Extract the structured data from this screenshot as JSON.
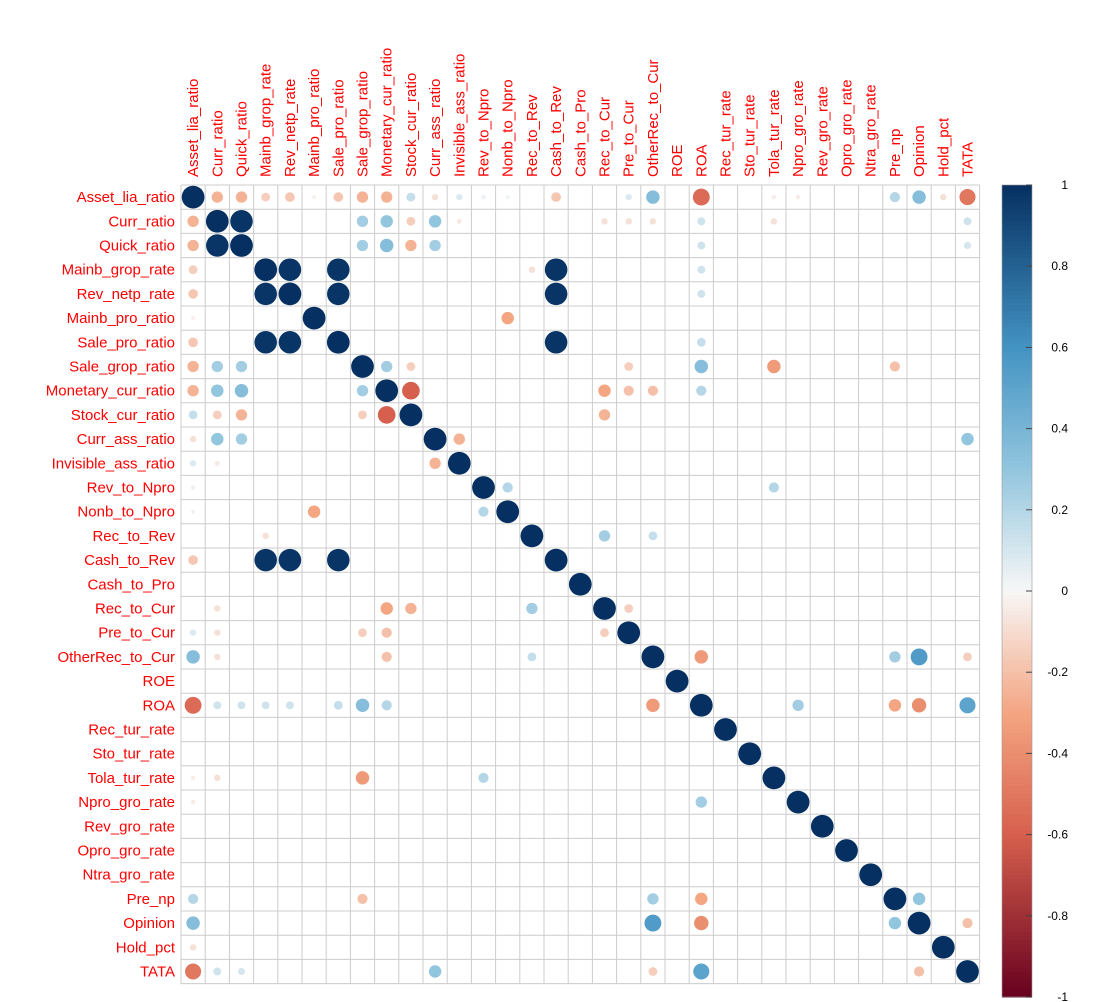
{
  "chart_data": {
    "type": "heatmap",
    "title": "",
    "variables": [
      "Asset_lia_ratio",
      "Curr_ratio",
      "Quick_ratio",
      "Mainb_grop_rate",
      "Rev_netp_rate",
      "Mainb_pro_ratio",
      "Sale_pro_ratio",
      "Sale_grop_ratio",
      "Monetary_cur_ratio",
      "Stock_cur_ratio",
      "Curr_ass_ratio",
      "Invisible_ass_ratio",
      "Rev_to_Npro",
      "Nonb_to_Npro",
      "Rec_to_Rev",
      "Cash_to_Rev",
      "Cash_to_Pro",
      "Rec_to_Cur",
      "Pre_to_Cur",
      "OtherRec_to_Cur",
      "ROE",
      "ROA",
      "Rec_tur_rate",
      "Sto_tur_rate",
      "Tola_tur_rate",
      "Npro_gro_rate",
      "Rev_gro_rate",
      "Opro_gro_rate",
      "Ntra_gro_rate",
      "Pre_np",
      "Opinion",
      "Hold_pct",
      "TATA"
    ],
    "correlations": [
      {
        "a": "Asset_lia_ratio",
        "b": "Curr_ratio",
        "r": -0.25
      },
      {
        "a": "Asset_lia_ratio",
        "b": "Quick_ratio",
        "r": -0.25
      },
      {
        "a": "Asset_lia_ratio",
        "b": "Mainb_grop_rate",
        "r": -0.15
      },
      {
        "a": "Asset_lia_ratio",
        "b": "Rev_netp_rate",
        "r": -0.18
      },
      {
        "a": "Asset_lia_ratio",
        "b": "Mainb_pro_ratio",
        "r": -0.03
      },
      {
        "a": "Asset_lia_ratio",
        "b": "Sale_pro_ratio",
        "r": -0.18
      },
      {
        "a": "Asset_lia_ratio",
        "b": "Sale_grop_ratio",
        "r": -0.25
      },
      {
        "a": "Asset_lia_ratio",
        "b": "Monetary_cur_ratio",
        "r": -0.25
      },
      {
        "a": "Asset_lia_ratio",
        "b": "Stock_cur_ratio",
        "r": 0.15
      },
      {
        "a": "Asset_lia_ratio",
        "b": "Curr_ass_ratio",
        "r": -0.08
      },
      {
        "a": "Asset_lia_ratio",
        "b": "Invisible_ass_ratio",
        "r": 0.08
      },
      {
        "a": "Asset_lia_ratio",
        "b": "Rev_to_Npro",
        "r": 0.04
      },
      {
        "a": "Asset_lia_ratio",
        "b": "Nonb_to_Npro",
        "r": 0.03
      },
      {
        "a": "Asset_lia_ratio",
        "b": "Cash_to_Rev",
        "r": -0.18
      },
      {
        "a": "Asset_lia_ratio",
        "b": "Pre_to_Cur",
        "r": 0.08
      },
      {
        "a": "Asset_lia_ratio",
        "b": "OtherRec_to_Cur",
        "r": 0.35
      },
      {
        "a": "Asset_lia_ratio",
        "b": "ROA",
        "r": -0.55
      },
      {
        "a": "Asset_lia_ratio",
        "b": "Tola_tur_rate",
        "r": -0.04
      },
      {
        "a": "Asset_lia_ratio",
        "b": "Npro_gro_rate",
        "r": -0.04
      },
      {
        "a": "Asset_lia_ratio",
        "b": "Pre_np",
        "r": 0.2
      },
      {
        "a": "Asset_lia_ratio",
        "b": "Opinion",
        "r": 0.35
      },
      {
        "a": "Asset_lia_ratio",
        "b": "Hold_pct",
        "r": -0.08
      },
      {
        "a": "Asset_lia_ratio",
        "b": "TATA",
        "r": -0.5
      },
      {
        "a": "Curr_ratio",
        "b": "Quick_ratio",
        "r": 0.98
      },
      {
        "a": "Curr_ratio",
        "b": "Sale_grop_ratio",
        "r": 0.25
      },
      {
        "a": "Curr_ratio",
        "b": "Monetary_cur_ratio",
        "r": 0.3
      },
      {
        "a": "Curr_ratio",
        "b": "Stock_cur_ratio",
        "r": -0.15
      },
      {
        "a": "Curr_ratio",
        "b": "Curr_ass_ratio",
        "r": 0.3
      },
      {
        "a": "Curr_ratio",
        "b": "Invisible_ass_ratio",
        "r": -0.05
      },
      {
        "a": "Curr_ratio",
        "b": "Rec_to_Cur",
        "r": -0.08
      },
      {
        "a": "Curr_ratio",
        "b": "Pre_to_Cur",
        "r": -0.08
      },
      {
        "a": "Curr_ratio",
        "b": "OtherRec_to_Cur",
        "r": -0.08
      },
      {
        "a": "Curr_ratio",
        "b": "ROA",
        "r": 0.12
      },
      {
        "a": "Curr_ratio",
        "b": "Tola_tur_rate",
        "r": -0.08
      },
      {
        "a": "Curr_ratio",
        "b": "TATA",
        "r": 0.12
      },
      {
        "a": "Quick_ratio",
        "b": "Sale_grop_ratio",
        "r": 0.25
      },
      {
        "a": "Quick_ratio",
        "b": "Monetary_cur_ratio",
        "r": 0.35
      },
      {
        "a": "Quick_ratio",
        "b": "Stock_cur_ratio",
        "r": -0.25
      },
      {
        "a": "Quick_ratio",
        "b": "Curr_ass_ratio",
        "r": 0.25
      },
      {
        "a": "Quick_ratio",
        "b": "ROA",
        "r": 0.12
      },
      {
        "a": "Quick_ratio",
        "b": "TATA",
        "r": 0.1
      },
      {
        "a": "Mainb_grop_rate",
        "b": "Rev_netp_rate",
        "r": 0.98
      },
      {
        "a": "Mainb_grop_rate",
        "b": "Sale_pro_ratio",
        "r": 0.98
      },
      {
        "a": "Mainb_grop_rate",
        "b": "Cash_to_Rev",
        "r": 0.98
      },
      {
        "a": "Mainb_grop_rate",
        "b": "Rec_to_Rev",
        "r": -0.08
      },
      {
        "a": "Mainb_grop_rate",
        "b": "ROA",
        "r": 0.12
      },
      {
        "a": "Rev_netp_rate",
        "b": "Sale_pro_ratio",
        "r": 0.98
      },
      {
        "a": "Rev_netp_rate",
        "b": "Cash_to_Rev",
        "r": 0.98
      },
      {
        "a": "Rev_netp_rate",
        "b": "ROA",
        "r": 0.12
      },
      {
        "a": "Mainb_pro_ratio",
        "b": "Nonb_to_Npro",
        "r": -0.3
      },
      {
        "a": "Sale_pro_ratio",
        "b": "Cash_to_Rev",
        "r": 0.98
      },
      {
        "a": "Sale_pro_ratio",
        "b": "ROA",
        "r": 0.15
      },
      {
        "a": "Sale_grop_ratio",
        "b": "Monetary_cur_ratio",
        "r": 0.25
      },
      {
        "a": "Sale_grop_ratio",
        "b": "Stock_cur_ratio",
        "r": -0.15
      },
      {
        "a": "Sale_grop_ratio",
        "b": "Pre_to_Cur",
        "r": -0.15
      },
      {
        "a": "Sale_grop_ratio",
        "b": "ROA",
        "r": 0.35
      },
      {
        "a": "Sale_grop_ratio",
        "b": "Tola_tur_rate",
        "r": -0.35
      },
      {
        "a": "Sale_grop_ratio",
        "b": "Pre_np",
        "r": -0.2
      },
      {
        "a": "Monetary_cur_ratio",
        "b": "Stock_cur_ratio",
        "r": -0.6
      },
      {
        "a": "Monetary_cur_ratio",
        "b": "Rec_to_Cur",
        "r": -0.3
      },
      {
        "a": "Monetary_cur_ratio",
        "b": "Pre_to_Cur",
        "r": -0.2
      },
      {
        "a": "Monetary_cur_ratio",
        "b": "OtherRec_to_Cur",
        "r": -0.2
      },
      {
        "a": "Monetary_cur_ratio",
        "b": "ROA",
        "r": 0.2
      },
      {
        "a": "Stock_cur_ratio",
        "b": "Rec_to_Cur",
        "r": -0.25
      },
      {
        "a": "Curr_ass_ratio",
        "b": "Invisible_ass_ratio",
        "r": -0.25
      },
      {
        "a": "Curr_ass_ratio",
        "b": "TATA",
        "r": 0.3
      },
      {
        "a": "Rev_to_Npro",
        "b": "Nonb_to_Npro",
        "r": 0.2
      },
      {
        "a": "Rev_to_Npro",
        "b": "Tola_tur_rate",
        "r": 0.2
      },
      {
        "a": "Rec_to_Rev",
        "b": "Rec_to_Cur",
        "r": 0.25
      },
      {
        "a": "Rec_to_Rev",
        "b": "OtherRec_to_Cur",
        "r": 0.15
      },
      {
        "a": "Rec_to_Cur",
        "b": "Pre_to_Cur",
        "r": -0.15
      },
      {
        "a": "OtherRec_to_Cur",
        "b": "ROA",
        "r": -0.35
      },
      {
        "a": "OtherRec_to_Cur",
        "b": "Pre_np",
        "r": 0.25
      },
      {
        "a": "OtherRec_to_Cur",
        "b": "Opinion",
        "r": 0.55
      },
      {
        "a": "OtherRec_to_Cur",
        "b": "TATA",
        "r": -0.15
      },
      {
        "a": "ROA",
        "b": "Npro_gro_rate",
        "r": 0.25
      },
      {
        "a": "ROA",
        "b": "Pre_np",
        "r": -0.3
      },
      {
        "a": "ROA",
        "b": "Opinion",
        "r": -0.4
      },
      {
        "a": "ROA",
        "b": "TATA",
        "r": 0.5
      },
      {
        "a": "Pre_np",
        "b": "Opinion",
        "r": 0.3
      },
      {
        "a": "Opinion",
        "b": "TATA",
        "r": -0.2
      }
    ],
    "legend": {
      "position": "right",
      "ticks": [
        1,
        0.8,
        0.6,
        0.4,
        0.2,
        0,
        -0.2,
        -0.4,
        -0.6,
        -0.8,
        -1
      ],
      "tick_labels": [
        "1",
        "0.8",
        "0.6",
        "0.4",
        "0.2",
        "0",
        "-0.2",
        "-0.4",
        "-0.6",
        "-0.8",
        "-1"
      ]
    },
    "palette": {
      "label_color": "#ff0000",
      "grid_color": "#cccccc",
      "negative_end": "#67001f",
      "negative_mid": "#d6604d",
      "negative_light": "#f4a582",
      "zero": "#f7f7f7",
      "positive_light": "#92c5de",
      "positive_mid": "#4393c3",
      "positive_end": "#053061"
    }
  }
}
